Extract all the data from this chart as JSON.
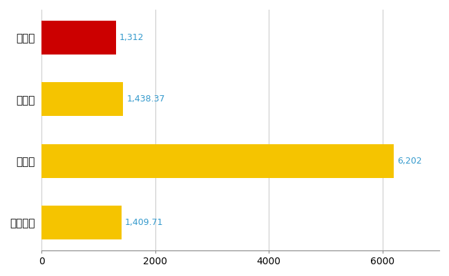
{
  "categories": [
    "栗東市",
    "県平均",
    "県最大",
    "全国平均"
  ],
  "values": [
    1312,
    1438.37,
    6202,
    1409.71
  ],
  "bar_colors": [
    "#cc0000",
    "#f5c400",
    "#f5c400",
    "#f5c400"
  ],
  "label_texts": [
    "1,312",
    "1,438.37",
    "6,202",
    "1,409.71"
  ],
  "label_color": "#3399cc",
  "xlim": [
    0,
    7000
  ],
  "xticks": [
    0,
    2000,
    4000,
    6000
  ],
  "background_color": "#ffffff",
  "grid_color": "#cccccc",
  "bar_height": 0.55,
  "figsize": [
    6.5,
    4.0
  ],
  "dpi": 100,
  "label_fontsize": 9,
  "ytick_fontsize": 11,
  "xtick_fontsize": 10
}
